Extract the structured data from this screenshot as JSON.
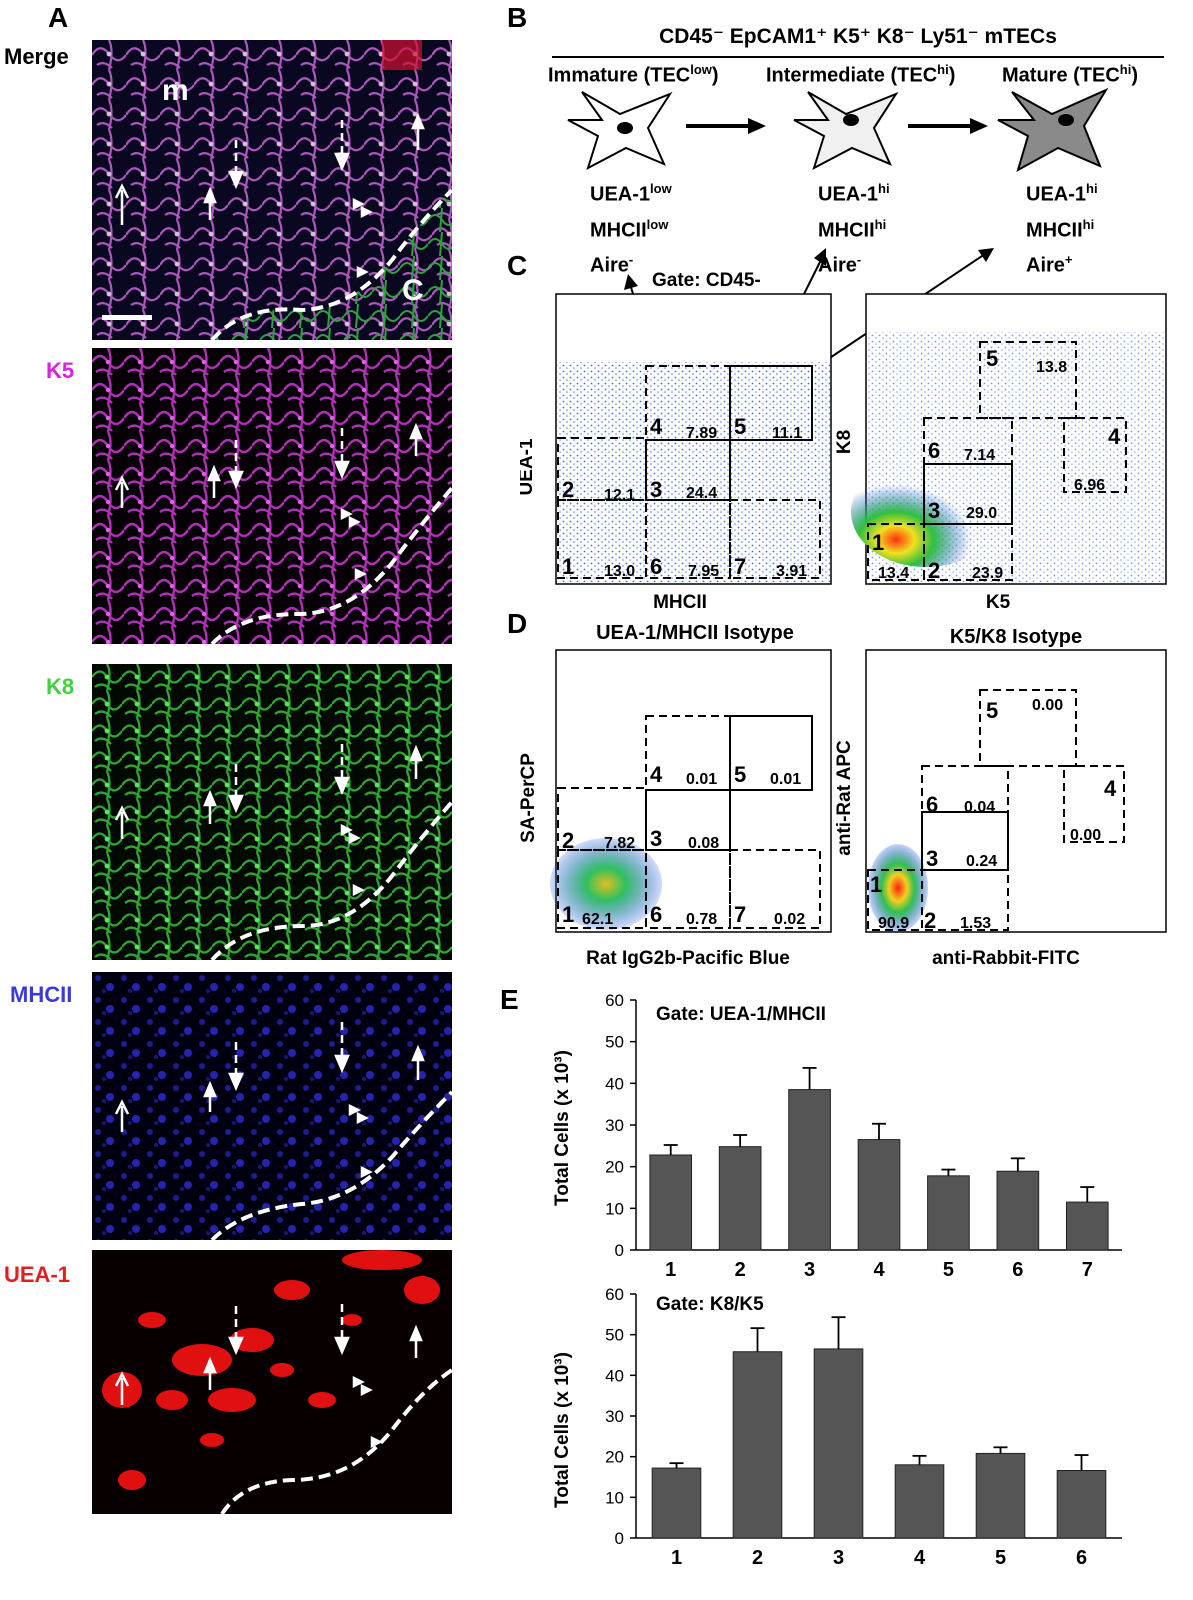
{
  "panel_letters": {
    "a": "A",
    "b": "B",
    "c": "C",
    "d": "D",
    "e": "E"
  },
  "panel_a": {
    "channels": [
      {
        "label": "Merge",
        "color": "#000000"
      },
      {
        "label": "K5",
        "color": "#e020e0"
      },
      {
        "label": "K8",
        "color": "#40d040"
      },
      {
        "label": "MHCII",
        "color": "#3a3ad8"
      },
      {
        "label": "UEA-1",
        "color": "#e02020"
      }
    ],
    "region_m": "m",
    "region_c": "C"
  },
  "panel_b": {
    "header": "CD45⁻ EpCAM1⁺ K5⁺ K8⁻ Ly51⁻ mTECs",
    "stages": [
      {
        "title": "Immature (TEC",
        "sup": "low",
        "close": ")",
        "markers": [
          [
            "UEA-1",
            "low"
          ],
          [
            "MHCII",
            "low"
          ],
          [
            "Aire",
            "-"
          ]
        ]
      },
      {
        "title": "Intermediate (TEC",
        "sup": "hi",
        "close": ")",
        "markers": [
          [
            "UEA-1",
            "hi"
          ],
          [
            "MHCII",
            "hi"
          ],
          [
            "Aire",
            "-"
          ]
        ]
      },
      {
        "title": "Mature (TEC",
        "sup": "hi",
        "close": ")",
        "markers": [
          [
            "UEA-1",
            "hi"
          ],
          [
            "MHCII",
            "hi"
          ],
          [
            "Aire",
            "+"
          ]
        ]
      }
    ]
  },
  "panel_c": {
    "gate_label": "Gate: CD45-",
    "left": {
      "xlabel": "MHCII",
      "ylabel": "UEA-1",
      "gates": [
        {
          "n": "1",
          "v": "13.0"
        },
        {
          "n": "2",
          "v": "12.1"
        },
        {
          "n": "3",
          "v": "24.4"
        },
        {
          "n": "4",
          "v": "7.89"
        },
        {
          "n": "5",
          "v": "11.1"
        },
        {
          "n": "6",
          "v": "7.95"
        },
        {
          "n": "7",
          "v": "3.91"
        }
      ]
    },
    "right": {
      "xlabel": "K5",
      "ylabel": "K8",
      "gates": [
        {
          "n": "1",
          "v": "13.4"
        },
        {
          "n": "2",
          "v": "23.9"
        },
        {
          "n": "3",
          "v": "29.0"
        },
        {
          "n": "4",
          "v": "6.96"
        },
        {
          "n": "5",
          "v": "13.8"
        },
        {
          "n": "6",
          "v": "7.14"
        }
      ]
    }
  },
  "panel_d": {
    "left": {
      "title": "UEA-1/MHCII Isotype",
      "xlabel": "Rat IgG2b-Pacific Blue",
      "ylabel": "SA-PerCP",
      "gates": [
        {
          "n": "1",
          "v": "62.1"
        },
        {
          "n": "2",
          "v": "7.82"
        },
        {
          "n": "3",
          "v": "0.08"
        },
        {
          "n": "4",
          "v": "0.01"
        },
        {
          "n": "5",
          "v": "0.01"
        },
        {
          "n": "6",
          "v": "0.78"
        },
        {
          "n": "7",
          "v": "0.02"
        }
      ]
    },
    "right": {
      "title": "K5/K8 Isotype",
      "xlabel": "anti-Rabbit-FITC",
      "ylabel": "anti-Rat APC",
      "gates": [
        {
          "n": "1",
          "v": "90.9"
        },
        {
          "n": "2",
          "v": "1.53"
        },
        {
          "n": "3",
          "v": "0.24"
        },
        {
          "n": "4",
          "v": "0.00"
        },
        {
          "n": "5",
          "v": "0.00"
        },
        {
          "n": "6",
          "v": "0.04"
        }
      ]
    }
  },
  "chart_data": [
    {
      "type": "bar",
      "title": "Gate: UEA-1/MHCII",
      "ylabel": "Total Cells (x 10³)",
      "ylim": [
        0,
        60
      ],
      "yticks": [
        0,
        10,
        20,
        30,
        40,
        50,
        60
      ],
      "categories": [
        "1",
        "2",
        "3",
        "4",
        "5",
        "6",
        "7"
      ],
      "values": [
        22.8,
        24.8,
        38.5,
        26.5,
        17.8,
        18.9,
        11.5
      ],
      "errors": [
        2.4,
        2.8,
        5.2,
        3.8,
        1.5,
        3.1,
        3.6
      ],
      "bar_color": "#555555"
    },
    {
      "type": "bar",
      "title": "Gate: K8/K5",
      "ylabel": "Total Cells (x 10³)",
      "ylim": [
        0,
        60
      ],
      "yticks": [
        0,
        10,
        20,
        30,
        40,
        50,
        60
      ],
      "categories": [
        "1",
        "2",
        "3",
        "4",
        "5",
        "6"
      ],
      "values": [
        17.2,
        45.8,
        46.5,
        18.0,
        20.8,
        16.6
      ],
      "errors": [
        1.2,
        5.8,
        7.8,
        2.2,
        1.5,
        3.8
      ],
      "bar_color": "#555555"
    }
  ]
}
